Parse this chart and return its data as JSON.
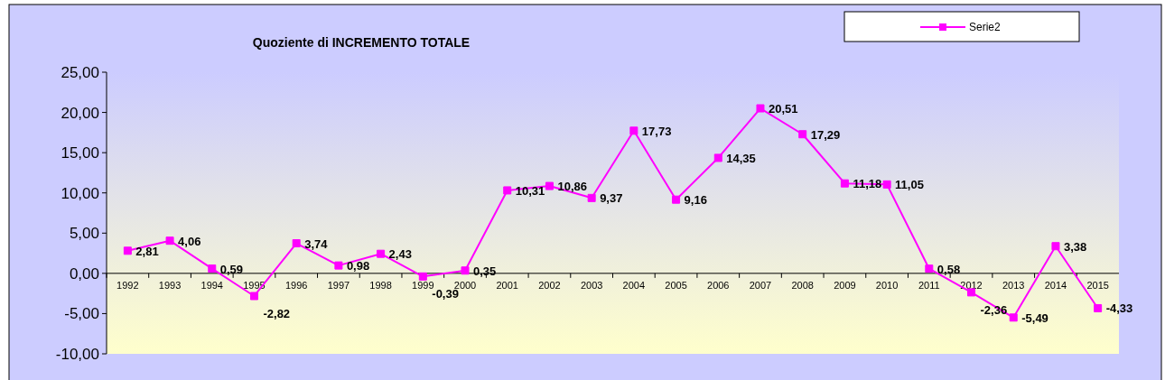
{
  "chart_data": {
    "type": "line",
    "title": "Quoziente di INCREMENTO TOTALE",
    "categories": [
      "1992",
      "1993",
      "1994",
      "1995",
      "1996",
      "1997",
      "1998",
      "1999",
      "2000",
      "2001",
      "2002",
      "2003",
      "2004",
      "2005",
      "2006",
      "2007",
      "2008",
      "2009",
      "2010",
      "2011",
      "2012",
      "2013",
      "2014",
      "2015"
    ],
    "series": [
      {
        "name": "Serie2",
        "color": "#ff00ff",
        "values": [
          2.81,
          4.06,
          0.59,
          -2.82,
          3.74,
          0.98,
          2.43,
          -0.39,
          0.35,
          10.31,
          10.86,
          9.37,
          17.73,
          9.16,
          14.35,
          20.51,
          17.29,
          11.18,
          11.05,
          0.58,
          -2.36,
          -5.49,
          3.38,
          -4.33
        ],
        "value_labels": [
          "2,81",
          "4,06",
          "0,59",
          "-2,82",
          "3,74",
          "0,98",
          "2,43",
          "-0,39",
          "0,35",
          "10,31",
          "10,86",
          "9,37",
          "17,73",
          "9,16",
          "14,35",
          "20,51",
          "17,29",
          "11,18",
          "11,05",
          "0,58",
          "-2,36",
          "-5,49",
          "3,38",
          "-4,33"
        ]
      }
    ],
    "ylim": [
      -10,
      25
    ],
    "yticks": [
      {
        "value": -10,
        "label": "-10,00"
      },
      {
        "value": -5,
        "label": "-5,00"
      },
      {
        "value": 0,
        "label": "0,00"
      },
      {
        "value": 5,
        "label": "5,00"
      },
      {
        "value": 10,
        "label": "10,00"
      },
      {
        "value": 15,
        "label": "15,00"
      },
      {
        "value": 20,
        "label": "20,00"
      },
      {
        "value": 25,
        "label": "25,00"
      }
    ],
    "marker": "square",
    "legend": "top right",
    "grid": false
  }
}
